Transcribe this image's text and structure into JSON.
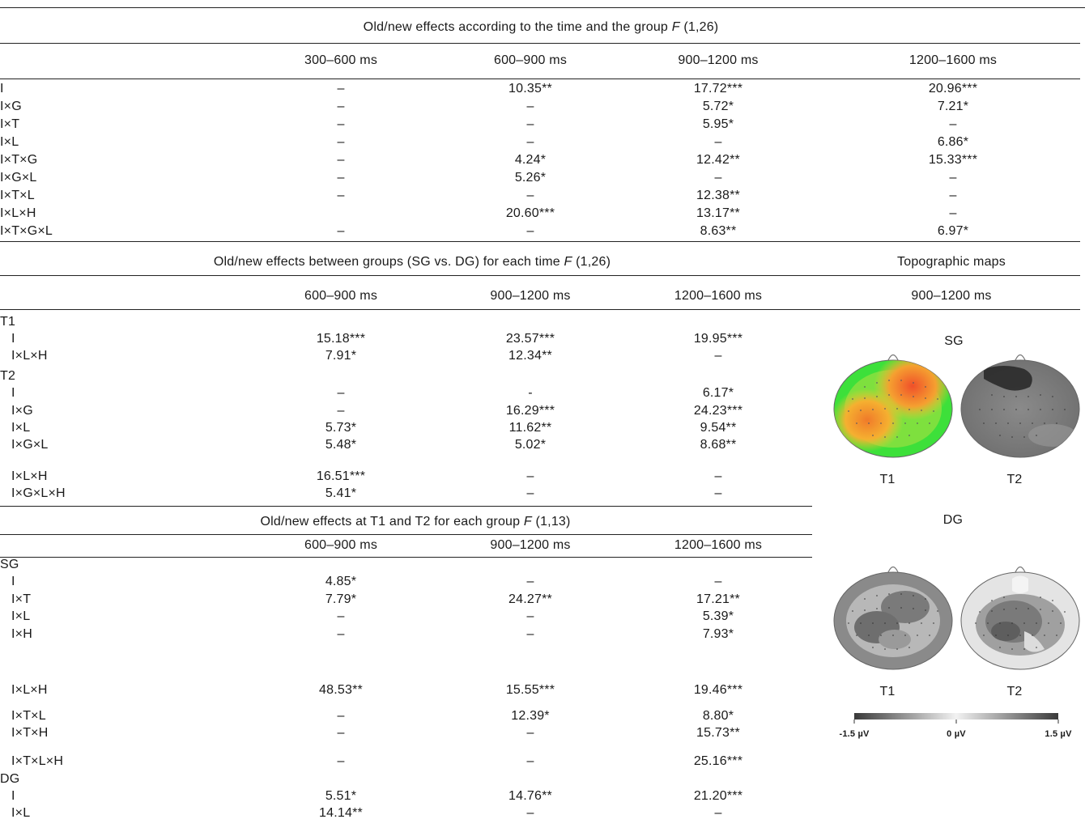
{
  "table1": {
    "header": "Old/new effects according to the time and the group",
    "stat": "F",
    "stat_df": "(1,26)",
    "columns": [
      "300–600 ms",
      "600–900 ms",
      "900–1200 ms",
      "1200–1600 ms"
    ],
    "rows": [
      {
        "label": "I",
        "v": [
          "–",
          "10.35**",
          "17.72***",
          "20.96***"
        ]
      },
      {
        "label": "I×G",
        "v": [
          "–",
          "–",
          "5.72*",
          "7.21*"
        ]
      },
      {
        "label": "I×T",
        "v": [
          "–",
          "–",
          "5.95*",
          "–"
        ]
      },
      {
        "label": "I×L",
        "v": [
          "–",
          "–",
          "–",
          "6.86*"
        ]
      },
      {
        "label": "I×T×G",
        "v": [
          "–",
          "4.24*",
          "12.42**",
          "15.33***"
        ]
      },
      {
        "label": "I×G×L",
        "v": [
          "–",
          "5.26*",
          "–",
          "–"
        ]
      },
      {
        "label": "I×T×L",
        "v": [
          "–",
          "–",
          "12.38**",
          "–"
        ]
      },
      {
        "label": "I×L×H",
        "v": [
          "",
          "20.60***",
          "13.17**",
          "–"
        ]
      },
      {
        "label": "I×T×G×L",
        "v": [
          "–",
          "–",
          "8.63**",
          "6.97*"
        ]
      }
    ]
  },
  "table2": {
    "header": "Old/new effects between groups (SG vs. DG) for each time",
    "stat": "F",
    "stat_df": "(1,26)",
    "columns": [
      "600–900 ms",
      "900–1200 ms",
      "1200–1600 ms"
    ],
    "rows": [
      {
        "label": "T1",
        "group": true,
        "v": [
          "",
          "",
          ""
        ]
      },
      {
        "label": "I",
        "v": [
          "15.18***",
          "23.57***",
          "19.95***"
        ]
      },
      {
        "label": "I×L×H",
        "v": [
          "7.91*",
          "12.34**",
          "–"
        ]
      },
      {
        "label": "T2",
        "group": true,
        "v": [
          "",
          "",
          ""
        ]
      },
      {
        "label": "I",
        "v": [
          "–",
          "-",
          "6.17*"
        ]
      },
      {
        "label": "I×G",
        "v": [
          "–",
          "16.29***",
          "24.23***"
        ]
      },
      {
        "label": "I×L",
        "v": [
          "5.73*",
          "11.62**",
          "9.54**"
        ]
      },
      {
        "label": "I×G×L",
        "v": [
          "5.48*",
          "5.02*",
          "8.68**"
        ]
      },
      {
        "label": "I×L×H",
        "v": [
          "16.51***",
          "–",
          "–"
        ]
      },
      {
        "label": "I×G×L×H",
        "v": [
          "5.41*",
          "–",
          "–"
        ]
      }
    ]
  },
  "table3": {
    "header": "Old/new effects at T1 and T2 for each group",
    "stat": "F",
    "stat_df": "(1,13)",
    "columns": [
      "600–900 ms",
      "900–1200 ms",
      "1200–1600 ms"
    ],
    "rows": [
      {
        "label": "SG",
        "group": true,
        "v": [
          "",
          "",
          ""
        ]
      },
      {
        "label": "I",
        "v": [
          "4.85*",
          "–",
          "–"
        ]
      },
      {
        "label": "I×T",
        "v": [
          "7.79*",
          "24.27**",
          "17.21**"
        ]
      },
      {
        "label": "I×L",
        "v": [
          "–",
          "–",
          "5.39*"
        ]
      },
      {
        "label": "I×H",
        "v": [
          "–",
          "–",
          "7.93*"
        ]
      },
      {
        "label": "I×L×H",
        "v": [
          "48.53**",
          "15.55***",
          "19.46***"
        ]
      },
      {
        "label": "I×T×L",
        "v": [
          "–",
          "12.39*",
          "8.80*"
        ]
      },
      {
        "label": "I×T×H",
        "v": [
          "–",
          "–",
          "15.73**"
        ]
      },
      {
        "label": "I×T×L×H",
        "v": [
          "–",
          "–",
          "25.16***"
        ]
      },
      {
        "label": "DG",
        "group": true,
        "v": [
          "",
          "",
          ""
        ]
      },
      {
        "label": "I",
        "v": [
          "5.51*",
          "14.76**",
          "21.20***"
        ]
      },
      {
        "label": "I×L",
        "v": [
          "14.14**",
          "–",
          "–"
        ]
      }
    ]
  },
  "topo": {
    "header": "Topographic maps",
    "window": "900–1200 ms",
    "sg_label": "SG",
    "dg_label": "DG",
    "t1": "T1",
    "t2": "T2",
    "scale_min": "-1.5 µV",
    "scale_mid": "0 µV",
    "scale_max": "1.5 µV"
  }
}
